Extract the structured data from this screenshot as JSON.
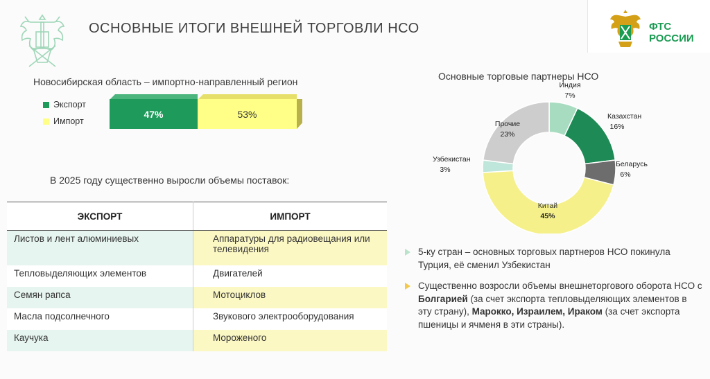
{
  "header": {
    "title": "ОСНОВНЫЕ ИТОГИ ВНЕШНЕЙ ТОРГОВЛИ НСО",
    "logo_line1": "ФТС",
    "logo_line2": "РОССИИ"
  },
  "share": {
    "subtitle": "Новосибирская область –  импортно-направленный регион",
    "legend_export": "Экспорт",
    "legend_import": "Импорт",
    "export_pct": 47,
    "import_pct": 53,
    "export_label": "47%",
    "import_label": "53%",
    "export_color": "#1e9a5a",
    "import_color": "#ffff88"
  },
  "growth": {
    "heading": "В 2025 году существенно  выросли объемы поставок:",
    "col_export": "ЭКСПОРТ",
    "col_import": "ИМПОРТ",
    "rows": [
      {
        "export": "Листов и лент алюминиевых",
        "import": "Аппаратуры для радиовещания или телевидения"
      },
      {
        "export": "Тепловыделяющих элементов",
        "import": "Двигателей"
      },
      {
        "export": "Семян рапса",
        "import": "Мотоциклов"
      },
      {
        "export": "Масла подсолнечного",
        "import": "Звукового электрооборудования"
      },
      {
        "export": "Каучука",
        "import": "Мороженого"
      }
    ]
  },
  "chart_data": {
    "type": "pie",
    "title": "Основные торговые партнеры НСО",
    "slices": [
      {
        "name": "Индия",
        "value": 7,
        "label": "7%",
        "color": "#a8dcc0"
      },
      {
        "name": "Казахстан",
        "value": 16,
        "label": "16%",
        "color": "#1e8a55"
      },
      {
        "name": "Беларусь",
        "value": 6,
        "label": "6%",
        "color": "#6d6d6d"
      },
      {
        "name": "Китай",
        "value": 45,
        "label": "45%",
        "color": "#f5f08a"
      },
      {
        "name": "Узбекистан",
        "value": 3,
        "label": "3%",
        "color": "#bfe6da"
      },
      {
        "name": "Прочие",
        "value": 23,
        "label": "23%",
        "color": "#cdcdcd"
      }
    ]
  },
  "notes": {
    "b1": "5-ку стран – основных торговых партнеров НСО покинула Турция, её сменил Узбекистан",
    "b2_a": "Существенно возросли объемы внешнеторгового оборота НСО с ",
    "b2_b": "Болгарией",
    "b2_c": " (за счет экспорта тепловыделяющих элементов в эту страну), ",
    "b2_d": "Марокко, Израилем, Ираком",
    "b2_e": " (за счет экспорта пшеницы и ячменя в эти страны)."
  }
}
